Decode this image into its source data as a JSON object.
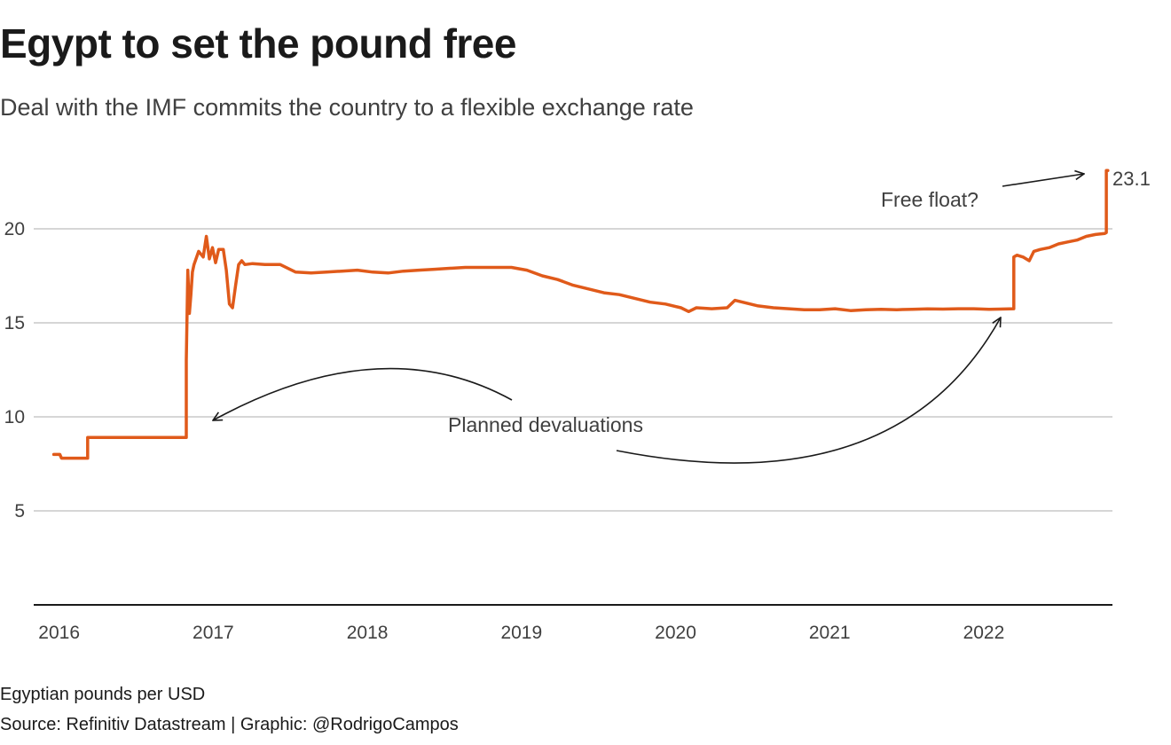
{
  "header": {
    "title": "Egypt to set the pound free",
    "subtitle": "Deal with the IMF commits the country to a flexible exchange rate"
  },
  "footer": {
    "unit": "Egyptian pounds per USD",
    "source": "Source: Refinitiv Datastream | Graphic: @RodrigoCampos"
  },
  "colors": {
    "line": "#e05a1a",
    "grid": "#c8c8c8",
    "axis": "#1a1a1a",
    "annotation": "#1a1a1a"
  },
  "chart_data": {
    "type": "line",
    "title": "Egypt to set the pound free",
    "subtitle": "Deal with the IMF commits the country to a flexible exchange rate",
    "xlabel": "",
    "ylabel": "Egyptian pounds per USD",
    "xlim": [
      2015.85,
      2022.85
    ],
    "ylim": [
      0,
      25
    ],
    "y_ticks": [
      5,
      10,
      15,
      20
    ],
    "x_ticks": [
      2016,
      2017,
      2018,
      2019,
      2020,
      2021,
      2022
    ],
    "grid": true,
    "series": [
      {
        "name": "Egyptian pounds per USD",
        "x": [
          2015.98,
          2016.02,
          2016.03,
          2016.2,
          2016.2,
          2016.84,
          2016.84,
          2016.85,
          2016.86,
          2016.87,
          2016.88,
          2016.89,
          2016.92,
          2016.95,
          2016.97,
          2016.99,
          2017.01,
          2017.03,
          2017.05,
          2017.08,
          2017.1,
          2017.12,
          2017.14,
          2017.16,
          2017.18,
          2017.2,
          2017.22,
          2017.27,
          2017.35,
          2017.45,
          2017.55,
          2017.65,
          2017.75,
          2017.85,
          2017.95,
          2018.05,
          2018.15,
          2018.25,
          2018.35,
          2018.45,
          2018.55,
          2018.65,
          2018.75,
          2018.85,
          2018.95,
          2019.05,
          2019.15,
          2019.25,
          2019.35,
          2019.45,
          2019.55,
          2019.65,
          2019.75,
          2019.85,
          2019.95,
          2020.05,
          2020.1,
          2020.15,
          2020.25,
          2020.35,
          2020.4,
          2020.45,
          2020.55,
          2020.65,
          2020.75,
          2020.85,
          2020.95,
          2021.05,
          2021.15,
          2021.25,
          2021.35,
          2021.45,
          2021.55,
          2021.65,
          2021.75,
          2021.85,
          2021.95,
          2022.05,
          2022.12,
          2022.21,
          2022.21,
          2022.23,
          2022.27,
          2022.31,
          2022.34,
          2022.38,
          2022.44,
          2022.5,
          2022.56,
          2022.62,
          2022.68,
          2022.74,
          2022.8,
          2022.81,
          2022.81,
          2022.82
        ],
        "values": [
          8.0,
          8.0,
          7.8,
          7.8,
          8.9,
          8.9,
          13.0,
          17.8,
          15.5,
          16.5,
          17.7,
          18.1,
          18.8,
          18.5,
          19.6,
          18.4,
          19.0,
          18.2,
          18.9,
          18.9,
          17.8,
          16.0,
          15.8,
          17.0,
          18.1,
          18.3,
          18.1,
          18.15,
          18.1,
          18.1,
          17.7,
          17.65,
          17.7,
          17.75,
          17.8,
          17.7,
          17.65,
          17.75,
          17.8,
          17.85,
          17.9,
          17.95,
          17.95,
          17.95,
          17.95,
          17.8,
          17.5,
          17.3,
          17.0,
          16.8,
          16.6,
          16.5,
          16.3,
          16.1,
          16.0,
          15.8,
          15.6,
          15.8,
          15.75,
          15.8,
          16.2,
          16.1,
          15.9,
          15.8,
          15.75,
          15.7,
          15.7,
          15.75,
          15.65,
          15.7,
          15.72,
          15.7,
          15.72,
          15.74,
          15.73,
          15.75,
          15.75,
          15.72,
          15.73,
          15.75,
          18.5,
          18.6,
          18.5,
          18.3,
          18.8,
          18.9,
          19.0,
          19.2,
          19.3,
          19.4,
          19.6,
          19.7,
          19.75,
          19.8,
          23.1,
          23.1
        ]
      }
    ],
    "end_label": "23.1",
    "annotations": [
      {
        "text": "Planned devaluations"
      },
      {
        "text": "Free float?"
      }
    ]
  }
}
